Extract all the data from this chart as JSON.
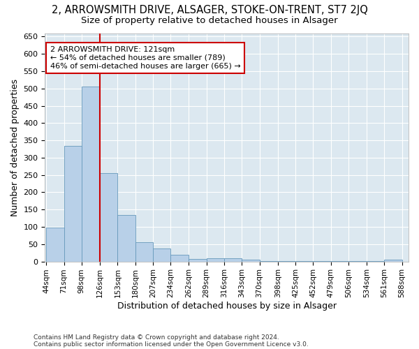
{
  "title": "2, ARROWSMITH DRIVE, ALSAGER, STOKE-ON-TRENT, ST7 2JQ",
  "subtitle": "Size of property relative to detached houses in Alsager",
  "xlabel": "Distribution of detached houses by size in Alsager",
  "ylabel": "Number of detached properties",
  "footnote1": "Contains HM Land Registry data © Crown copyright and database right 2024.",
  "footnote2": "Contains public sector information licensed under the Open Government Licence v3.0.",
  "annotation_line1": "2 ARROWSMITH DRIVE: 121sqm",
  "annotation_line2": "← 54% of detached houses are smaller (789)",
  "annotation_line3": "46% of semi-detached houses are larger (665) →",
  "bar_edges": [
    44,
    71,
    98,
    126,
    153,
    180,
    207,
    234,
    262,
    289,
    316,
    343,
    370,
    398,
    425,
    452,
    479,
    506,
    534,
    561,
    588
  ],
  "bar_heights": [
    98,
    335,
    505,
    255,
    135,
    55,
    38,
    20,
    8,
    10,
    10,
    5,
    2,
    2,
    2,
    1,
    1,
    1,
    1,
    5
  ],
  "bar_color": "#b8d0e8",
  "bar_edge_color": "#6699bb",
  "property_line_x": 126,
  "property_line_color": "#cc0000",
  "ylim": [
    0,
    660
  ],
  "yticks": [
    0,
    50,
    100,
    150,
    200,
    250,
    300,
    350,
    400,
    450,
    500,
    550,
    600,
    650
  ],
  "plot_bg_color": "#dce8f0",
  "fig_bg_color": "#ffffff",
  "annotation_box_color": "#cc0000",
  "title_fontsize": 10.5,
  "subtitle_fontsize": 9.5,
  "tick_fontsize": 7.5,
  "axis_label_fontsize": 9,
  "footnote_fontsize": 6.5
}
